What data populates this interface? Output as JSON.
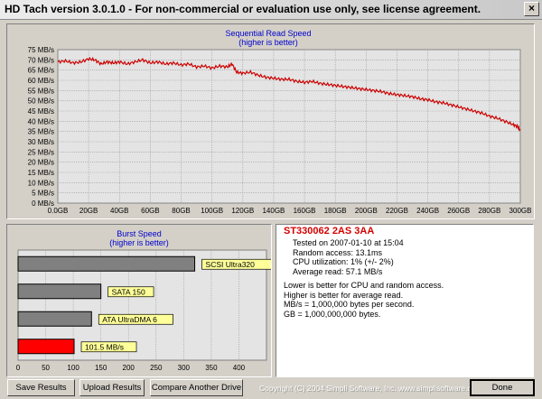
{
  "window": {
    "title": "HD Tach version 3.0.1.0  - For non-commercial or evaluation use only, see license agreement.",
    "close_label": "×"
  },
  "colors": {
    "plot_bg": "#e4e4e4",
    "read_line": "#cc0000",
    "title_text": "#0000cc",
    "bar_gray": "#808080",
    "bar_red": "#ff0000",
    "label_bg": "#ffff99"
  },
  "sequential_chart": {
    "title": "Sequential Read Speed",
    "subtitle": "(higher is better)",
    "chart_data": {
      "type": "line",
      "x_unit": "GB",
      "y_unit": "MB/s",
      "xlim": [
        0,
        300
      ],
      "ylim": [
        0,
        75
      ],
      "x_ticks": [
        "0.0GB",
        "20GB",
        "40GB",
        "60GB",
        "80GB",
        "100GB",
        "120GB",
        "140GB",
        "160GB",
        "180GB",
        "200GB",
        "220GB",
        "240GB",
        "260GB",
        "280GB",
        "300GB"
      ],
      "y_ticks": [
        "0 MB/s",
        "5 MB/s",
        "10 MB/s",
        "15 MB/s",
        "20 MB/s",
        "25 MB/s",
        "30 MB/s",
        "35 MB/s",
        "40 MB/s",
        "45 MB/s",
        "50 MB/s",
        "55 MB/s",
        "60 MB/s",
        "65 MB/s",
        "70 MB/s",
        "75 MB/s"
      ],
      "grid": true,
      "series": [
        {
          "x": [
            0,
            5,
            10,
            15,
            20,
            24,
            28,
            32,
            36,
            40,
            45,
            50,
            55,
            60,
            65,
            70,
            75,
            80,
            85,
            90,
            95,
            100,
            105,
            110,
            113,
            116,
            120,
            125,
            130,
            135,
            140,
            145,
            150,
            155,
            160,
            165,
            170,
            175,
            180,
            185,
            190,
            195,
            200,
            205,
            210,
            215,
            220,
            225,
            230,
            235,
            240,
            245,
            250,
            255,
            260,
            265,
            270,
            275,
            280,
            285,
            290,
            295,
            298,
            300
          ],
          "y": [
            69,
            69.5,
            68.5,
            69,
            70.5,
            70,
            68,
            69,
            68.5,
            69,
            68,
            69,
            70,
            68.5,
            69,
            68,
            68.5,
            67.5,
            68,
            66.5,
            67,
            66,
            67,
            66.5,
            68,
            64,
            63.5,
            64,
            62.5,
            61.5,
            61,
            60.5,
            60.5,
            59.5,
            59,
            59.5,
            58.5,
            58,
            57.5,
            57,
            56.5,
            56,
            55.5,
            55,
            54.5,
            53.5,
            53,
            52.5,
            52,
            51,
            50.5,
            49.5,
            49,
            48,
            47,
            46,
            45,
            44,
            42.5,
            41.5,
            40,
            38.5,
            37.5,
            35.5
          ]
        }
      ]
    }
  },
  "burst_chart": {
    "title": "Burst Speed",
    "subtitle": "(higher is better)",
    "chart_data": {
      "type": "bar",
      "orientation": "horizontal",
      "categories": [
        "SCSI Ultra320",
        "SATA 150",
        "ATA UltraDMA 6",
        "101.5 MB/s"
      ],
      "values": [
        320,
        150,
        133,
        101.5
      ],
      "bar_colors": [
        "#808080",
        "#808080",
        "#808080",
        "#ff0000"
      ],
      "xlim": [
        0,
        450
      ],
      "x_ticks": [
        "0",
        "50",
        "100",
        "150",
        "200",
        "250",
        "300",
        "350",
        "400"
      ]
    }
  },
  "info": {
    "drive_name": "ST330062 2AS  3AA",
    "tested_on": "Tested on 2007-01-10 at 15:04",
    "random_access": "Random access: 13.1ms",
    "cpu": "CPU utilization: 1% (+/- 2%)",
    "avg_read": "Average read: 57.1 MB/s",
    "note1": "Lower is better for CPU and random access.",
    "note2": "Higher is better for average read.",
    "note3": "MB/s = 1,000,000 bytes per second.",
    "note4": "GB = 1,000,000,000 bytes."
  },
  "buttons": {
    "save": "Save Results",
    "upload": "Upload Results",
    "compare": "Compare Another Drive",
    "done": "Done"
  },
  "copyright": "Copyright (C) 2004 Simpli Software, Inc. www.simplisoftware.com"
}
